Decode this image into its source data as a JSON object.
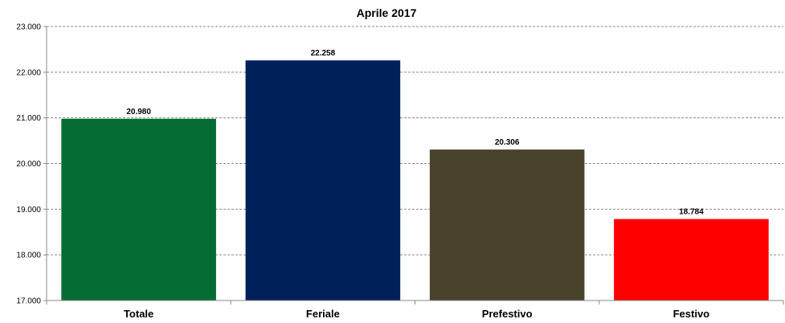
{
  "chart_data": {
    "type": "bar",
    "title": "Aprile 2017",
    "categories": [
      "Totale",
      "Feriale",
      "Prefestivo",
      "Festivo"
    ],
    "values": [
      20980,
      22258,
      20306,
      18784
    ],
    "value_labels": [
      "20.980",
      "22.258",
      "20.306",
      "18.784"
    ],
    "colors": [
      "#046C32",
      "#00205B",
      "#4A432C",
      "#FF0000"
    ],
    "ylim": [
      17000,
      23000
    ],
    "yticks": [
      17000,
      18000,
      19000,
      20000,
      21000,
      22000,
      23000
    ],
    "ytick_labels": [
      "17.000",
      "18.000",
      "19.000",
      "20.000",
      "21.000",
      "22.000",
      "23.000"
    ],
    "grid": true,
    "legend": "none",
    "xlabel": "",
    "ylabel": ""
  }
}
